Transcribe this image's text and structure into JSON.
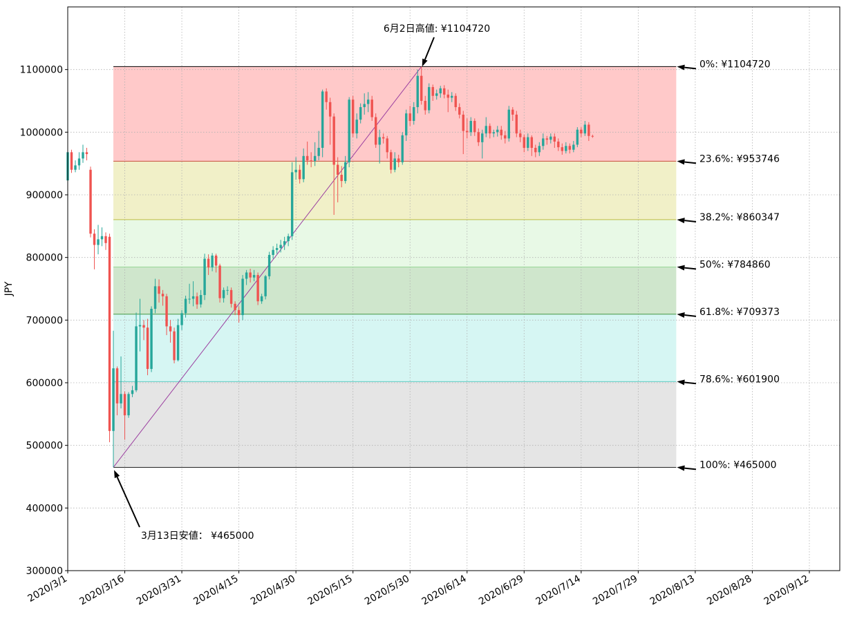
{
  "chart_data": {
    "type": "candlestick",
    "ylabel": "JPY",
    "xlabel": "",
    "title": "",
    "ylim": [
      300000,
      1200000
    ],
    "xlim": [
      "2020-03-01",
      "2020-09-20"
    ],
    "grid": true,
    "y_ticks": [
      300000,
      400000,
      500000,
      600000,
      700000,
      800000,
      900000,
      1000000,
      1100000
    ],
    "x_ticks": [
      {
        "date": "2020-03-01",
        "label": "2020/3/1"
      },
      {
        "date": "2020-03-16",
        "label": "2020/3/16"
      },
      {
        "date": "2020-03-31",
        "label": "2020/3/31"
      },
      {
        "date": "2020-04-15",
        "label": "2020/4/15"
      },
      {
        "date": "2020-04-30",
        "label": "2020/4/30"
      },
      {
        "date": "2020-05-15",
        "label": "2020/5/15"
      },
      {
        "date": "2020-05-30",
        "label": "2020/5/30"
      },
      {
        "date": "2020-06-14",
        "label": "2020/6/14"
      },
      {
        "date": "2020-06-29",
        "label": "2020/6/29"
      },
      {
        "date": "2020-07-14",
        "label": "2020/7/14"
      },
      {
        "date": "2020-07-29",
        "label": "2020/7/29"
      },
      {
        "date": "2020-08-13",
        "label": "2020/8/13"
      },
      {
        "date": "2020-08-28",
        "label": "2020/8/28"
      },
      {
        "date": "2020-09-12",
        "label": "2020/9/12"
      }
    ],
    "colors": {
      "up": "#26a69a",
      "down": "#ef5350",
      "trendline": "#9b3fa0"
    },
    "fib_start_date": "2020-03-13",
    "fib_end_date": "2020-08-08",
    "fib_levels": [
      {
        "label": "0%: ¥1104720",
        "value": 1104720,
        "line_color": "#000000"
      },
      {
        "label": "23.6%: ¥953746",
        "value": 953746,
        "line_color": "#c0392b"
      },
      {
        "label": "38.2%: ¥860347",
        "value": 860347,
        "line_color": "#b5b52a"
      },
      {
        "label": "50%: ¥784860",
        "value": 784860,
        "line_color": "#8fd48f"
      },
      {
        "label": "61.8%: ¥709373",
        "value": 709373,
        "line_color": "#2e8b2e"
      },
      {
        "label": "78.6%: ¥601900",
        "value": 601900,
        "line_color": "#4cc9c0"
      },
      {
        "label": "100%: ¥465000",
        "value": 465000,
        "line_color": "#000000"
      }
    ],
    "fib_bands": [
      {
        "top": 1104720,
        "bottom": 953746,
        "color": "#ffc9c9"
      },
      {
        "top": 953746,
        "bottom": 860347,
        "color": "#f1f0c8"
      },
      {
        "top": 860347,
        "bottom": 784860,
        "color": "#e8f9e6"
      },
      {
        "top": 784860,
        "bottom": 709373,
        "color": "#cfe6cc"
      },
      {
        "top": 709373,
        "bottom": 601900,
        "color": "#d6f6f3"
      },
      {
        "top": 601900,
        "bottom": 465000,
        "color": "#e5e5e5"
      }
    ],
    "annotations": [
      {
        "text": "6月2日高値: ¥1104720",
        "date": "2020-06-02",
        "value": 1104720
      },
      {
        "text": "3月13日安値： ¥465000",
        "date": "2020-03-13",
        "value": 465000
      }
    ],
    "trendline": [
      {
        "date": "2020-03-13",
        "value": 465000
      },
      {
        "date": "2020-06-02",
        "value": 1104720
      }
    ],
    "candles": [
      [
        "2020-03-01",
        923000,
        968000,
        920000,
        976000
      ],
      [
        "2020-03-02",
        968000,
        940000,
        935000,
        972000
      ],
      [
        "2020-03-03",
        940000,
        947000,
        936000,
        955000
      ],
      [
        "2020-03-04",
        947000,
        958000,
        940000,
        968000
      ],
      [
        "2020-03-05",
        958000,
        968000,
        951000,
        980000
      ],
      [
        "2020-03-06",
        968000,
        965000,
        955000,
        975000
      ],
      [
        "2020-03-07",
        940000,
        838000,
        832000,
        945000
      ],
      [
        "2020-03-08",
        838000,
        820000,
        781000,
        845000
      ],
      [
        "2020-03-09",
        820000,
        829000,
        805000,
        852000
      ],
      [
        "2020-03-10",
        829000,
        834000,
        818000,
        848000
      ],
      [
        "2020-03-11",
        834000,
        823000,
        812000,
        840000
      ],
      [
        "2020-03-12",
        833000,
        523000,
        505000,
        838000
      ],
      [
        "2020-03-13",
        523000,
        623000,
        465000,
        683000
      ],
      [
        "2020-03-14",
        623000,
        567000,
        548000,
        626000
      ],
      [
        "2020-03-15",
        567000,
        582000,
        559000,
        642000
      ],
      [
        "2020-03-16",
        582000,
        548000,
        509000,
        586000
      ],
      [
        "2020-03-17",
        548000,
        582000,
        544000,
        585000
      ],
      [
        "2020-03-18",
        582000,
        588000,
        577000,
        595000
      ],
      [
        "2020-03-19",
        588000,
        690000,
        585000,
        712000
      ],
      [
        "2020-03-20",
        690000,
        692000,
        650000,
        734000
      ],
      [
        "2020-03-21",
        692000,
        688000,
        668000,
        700000
      ],
      [
        "2020-03-22",
        688000,
        622000,
        612000,
        702000
      ],
      [
        "2020-03-23",
        622000,
        718000,
        617000,
        722000
      ],
      [
        "2020-03-24",
        718000,
        754000,
        711000,
        766000
      ],
      [
        "2020-03-25",
        754000,
        742000,
        728000,
        765000
      ],
      [
        "2020-03-26",
        742000,
        738000,
        723000,
        748000
      ],
      [
        "2020-03-27",
        738000,
        690000,
        676000,
        742000
      ],
      [
        "2020-03-28",
        690000,
        682000,
        664000,
        700000
      ],
      [
        "2020-03-29",
        682000,
        636000,
        631000,
        688000
      ],
      [
        "2020-03-30",
        636000,
        692000,
        634000,
        702000
      ],
      [
        "2020-03-31",
        692000,
        711000,
        684000,
        716000
      ],
      [
        "2020-04-01",
        711000,
        734000,
        704000,
        739000
      ],
      [
        "2020-04-02",
        734000,
        734000,
        726000,
        758000
      ],
      [
        "2020-04-03",
        734000,
        738000,
        722000,
        762000
      ],
      [
        "2020-04-04",
        738000,
        725000,
        718000,
        744000
      ],
      [
        "2020-04-05",
        725000,
        740000,
        720000,
        748000
      ],
      [
        "2020-04-06",
        740000,
        798000,
        732000,
        806000
      ],
      [
        "2020-04-07",
        798000,
        784000,
        772000,
        805000
      ],
      [
        "2020-04-08",
        784000,
        803000,
        778000,
        807000
      ],
      [
        "2020-04-09",
        803000,
        787000,
        776000,
        806000
      ],
      [
        "2020-04-10",
        787000,
        735000,
        728000,
        790000
      ],
      [
        "2020-04-11",
        735000,
        748000,
        728000,
        752000
      ],
      [
        "2020-04-12",
        748000,
        748000,
        740000,
        754000
      ],
      [
        "2020-04-13",
        748000,
        726000,
        720000,
        752000
      ],
      [
        "2020-04-14",
        726000,
        716000,
        708000,
        730000
      ],
      [
        "2020-04-15",
        716000,
        708000,
        696000,
        722000
      ],
      [
        "2020-04-16",
        708000,
        766000,
        700000,
        772000
      ],
      [
        "2020-04-17",
        766000,
        776000,
        756000,
        780000
      ],
      [
        "2020-04-18",
        776000,
        768000,
        760000,
        782000
      ],
      [
        "2020-04-19",
        768000,
        772000,
        762000,
        780000
      ],
      [
        "2020-04-20",
        772000,
        730000,
        724000,
        776000
      ],
      [
        "2020-04-21",
        730000,
        738000,
        726000,
        742000
      ],
      [
        "2020-04-22",
        738000,
        770000,
        733000,
        772000
      ],
      [
        "2020-04-23",
        770000,
        804000,
        765000,
        809000
      ],
      [
        "2020-04-24",
        804000,
        812000,
        798000,
        818000
      ],
      [
        "2020-04-25",
        812000,
        815000,
        806000,
        822000
      ],
      [
        "2020-04-26",
        815000,
        820000,
        808000,
        828000
      ],
      [
        "2020-04-27",
        820000,
        826000,
        812000,
        833000
      ],
      [
        "2020-04-28",
        826000,
        834000,
        818000,
        838000
      ],
      [
        "2020-04-29",
        834000,
        936000,
        828000,
        952000
      ],
      [
        "2020-04-30",
        936000,
        940000,
        924000,
        960000
      ],
      [
        "2020-05-01",
        940000,
        925000,
        918000,
        948000
      ],
      [
        "2020-05-02",
        925000,
        962000,
        920000,
        974000
      ],
      [
        "2020-05-03",
        962000,
        955000,
        948000,
        985000
      ],
      [
        "2020-05-04",
        955000,
        954000,
        944000,
        968000
      ],
      [
        "2020-05-05",
        954000,
        962000,
        946000,
        984000
      ],
      [
        "2020-05-06",
        962000,
        975000,
        955000,
        1002000
      ],
      [
        "2020-05-07",
        975000,
        1065000,
        960000,
        1068000
      ],
      [
        "2020-05-08",
        1065000,
        1048000,
        1036000,
        1070000
      ],
      [
        "2020-05-09",
        1048000,
        1025000,
        980000,
        1055000
      ],
      [
        "2020-05-10",
        1025000,
        948000,
        868000,
        1030000
      ],
      [
        "2020-05-11",
        948000,
        932000,
        888000,
        960000
      ],
      [
        "2020-05-12",
        932000,
        922000,
        912000,
        946000
      ],
      [
        "2020-05-13",
        922000,
        952000,
        918000,
        962000
      ],
      [
        "2020-05-14",
        952000,
        1052000,
        944000,
        1056000
      ],
      [
        "2020-05-15",
        1052000,
        998000,
        992000,
        1058000
      ],
      [
        "2020-05-16",
        998000,
        1020000,
        990000,
        1030000
      ],
      [
        "2020-05-17",
        1020000,
        1040000,
        1014000,
        1046000
      ],
      [
        "2020-05-18",
        1040000,
        1045000,
        1028000,
        1062000
      ],
      [
        "2020-05-19",
        1045000,
        1052000,
        1032000,
        1064000
      ],
      [
        "2020-05-20",
        1052000,
        1024000,
        1018000,
        1058000
      ],
      [
        "2020-05-21",
        1024000,
        980000,
        975000,
        1030000
      ],
      [
        "2020-05-22",
        980000,
        992000,
        950000,
        1004000
      ],
      [
        "2020-05-23",
        992000,
        990000,
        982000,
        998000
      ],
      [
        "2020-05-24",
        990000,
        968000,
        958000,
        994000
      ],
      [
        "2020-05-25",
        968000,
        940000,
        934000,
        972000
      ],
      [
        "2020-05-26",
        940000,
        958000,
        936000,
        968000
      ],
      [
        "2020-05-27",
        958000,
        952000,
        944000,
        964000
      ],
      [
        "2020-05-28",
        952000,
        995000,
        948000,
        1000000
      ],
      [
        "2020-05-29",
        995000,
        1030000,
        986000,
        1036000
      ],
      [
        "2020-05-30",
        1030000,
        1018000,
        1010000,
        1042000
      ],
      [
        "2020-05-31",
        1018000,
        1040000,
        1012000,
        1048000
      ],
      [
        "2020-06-01",
        1040000,
        1090000,
        1030000,
        1100000
      ],
      [
        "2020-06-02",
        1090000,
        1050000,
        1044000,
        1104720
      ],
      [
        "2020-06-03",
        1050000,
        1035000,
        1028000,
        1058000
      ],
      [
        "2020-06-04",
        1035000,
        1072000,
        1030000,
        1078000
      ],
      [
        "2020-06-05",
        1072000,
        1058000,
        1050000,
        1076000
      ],
      [
        "2020-06-06",
        1058000,
        1062000,
        1052000,
        1068000
      ],
      [
        "2020-06-07",
        1062000,
        1070000,
        1055000,
        1074000
      ],
      [
        "2020-06-08",
        1070000,
        1060000,
        1054000,
        1075000
      ],
      [
        "2020-06-09",
        1060000,
        1055000,
        1032000,
        1068000
      ],
      [
        "2020-06-10",
        1055000,
        1058000,
        1048000,
        1064000
      ],
      [
        "2020-06-11",
        1058000,
        1040000,
        1034000,
        1062000
      ],
      [
        "2020-06-12",
        1040000,
        1028000,
        1022000,
        1046000
      ],
      [
        "2020-06-13",
        1028000,
        1002000,
        965000,
        1034000
      ],
      [
        "2020-06-14",
        1002000,
        1000000,
        990000,
        1022000
      ],
      [
        "2020-06-15",
        1000000,
        1018000,
        994000,
        1024000
      ],
      [
        "2020-06-16",
        1018000,
        1000000,
        994000,
        1022000
      ],
      [
        "2020-06-17",
        1000000,
        984000,
        978000,
        1006000
      ],
      [
        "2020-06-18",
        984000,
        998000,
        958000,
        1004000
      ],
      [
        "2020-06-19",
        998000,
        1010000,
        992000,
        1024000
      ],
      [
        "2020-06-20",
        1010000,
        998000,
        990000,
        1014000
      ],
      [
        "2020-06-21",
        998000,
        1000000,
        992000,
        1004000
      ],
      [
        "2020-06-22",
        1000000,
        1004000,
        993000,
        1010000
      ],
      [
        "2020-06-23",
        1004000,
        995000,
        988000,
        1010000
      ],
      [
        "2020-06-24",
        995000,
        990000,
        982000,
        1002000
      ],
      [
        "2020-06-25",
        990000,
        1036000,
        985000,
        1042000
      ],
      [
        "2020-06-26",
        1036000,
        1028000,
        1018000,
        1040000
      ],
      [
        "2020-06-27",
        1028000,
        998000,
        992000,
        1034000
      ],
      [
        "2020-06-28",
        998000,
        992000,
        984000,
        1004000
      ],
      [
        "2020-06-29",
        992000,
        975000,
        968000,
        996000
      ],
      [
        "2020-06-30",
        975000,
        992000,
        970000,
        998000
      ],
      [
        "2020-07-01",
        992000,
        975000,
        962000,
        995000
      ],
      [
        "2020-07-02",
        975000,
        968000,
        960000,
        980000
      ],
      [
        "2020-07-03",
        968000,
        978000,
        962000,
        984000
      ],
      [
        "2020-07-04",
        978000,
        990000,
        972000,
        998000
      ],
      [
        "2020-07-05",
        990000,
        988000,
        980000,
        994000
      ],
      [
        "2020-07-06",
        988000,
        993000,
        982000,
        998000
      ],
      [
        "2020-07-07",
        993000,
        985000,
        975000,
        998000
      ],
      [
        "2020-07-08",
        985000,
        976000,
        970000,
        990000
      ],
      [
        "2020-07-09",
        976000,
        970000,
        964000,
        982000
      ],
      [
        "2020-07-10",
        970000,
        978000,
        966000,
        984000
      ],
      [
        "2020-07-11",
        978000,
        972000,
        966000,
        982000
      ],
      [
        "2020-07-12",
        972000,
        980000,
        968000,
        986000
      ],
      [
        "2020-07-13",
        980000,
        1004000,
        976000,
        1008000
      ],
      [
        "2020-07-14",
        1004000,
        998000,
        992000,
        1008000
      ],
      [
        "2020-07-15",
        998000,
        1012000,
        994000,
        1018000
      ],
      [
        "2020-07-16",
        1012000,
        994000,
        986000,
        1016000
      ],
      [
        "2020-07-17",
        994000,
        993000,
        991000,
        996000
      ]
    ]
  }
}
